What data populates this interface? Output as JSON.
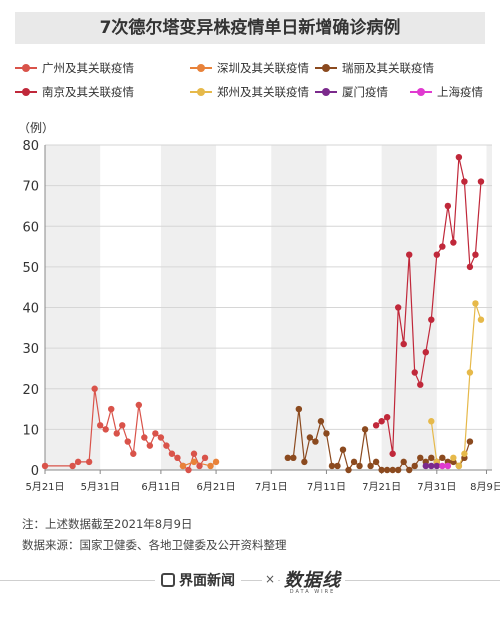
{
  "title": "7次德尔塔变异株疫情单日新增确诊病例",
  "legend": [
    {
      "label": "广州及其关联疫情",
      "color": "#d9534a"
    },
    {
      "label": "深圳及其关联疫情",
      "color": "#e8823a"
    },
    {
      "label": "瑞丽及其关联疫情",
      "color": "#8b4a1f"
    },
    {
      "label": "南京及其关联疫情",
      "color": "#c0283a"
    },
    {
      "label": "郑州及其关联疫情",
      "color": "#e6b94a"
    },
    {
      "label": "厦门疫情",
      "color": "#7b2a8c"
    },
    {
      "label": "上海疫情",
      "color": "#e03ad0"
    }
  ],
  "notes": {
    "line1": "注：上述数据截至2021年8月9日",
    "line2": "数据来源：国家卫健委、各地卫健委及公开资料整理"
  },
  "footer": {
    "brand": "界面新闻",
    "times": "×",
    "partner": "数据线",
    "partner_sub": "DATA WIRE"
  },
  "chart_data": {
    "type": "line",
    "title": "7次德尔塔变异株疫情单日新增确诊病例",
    "ylabel": "（例）",
    "ylim": [
      0,
      80
    ],
    "yticks": [
      0,
      10,
      20,
      30,
      40,
      50,
      60,
      70,
      80
    ],
    "x_range": [
      "2021-05-21",
      "2021-08-10"
    ],
    "x_ticks": [
      {
        "date": "2021-05-21",
        "label": "5月21日"
      },
      {
        "date": "2021-05-31",
        "label": "5月31日"
      },
      {
        "date": "2021-06-11",
        "label": "6月11日"
      },
      {
        "date": "2021-06-21",
        "label": "6月21日"
      },
      {
        "date": "2021-07-01",
        "label": "7月1日"
      },
      {
        "date": "2021-07-11",
        "label": "7月11日"
      },
      {
        "date": "2021-07-21",
        "label": "7月21日"
      },
      {
        "date": "2021-07-31",
        "label": "7月31日"
      },
      {
        "date": "2021-08-09",
        "label": "8月9日"
      }
    ],
    "grid": true,
    "series": [
      {
        "name": "广州及其关联疫情",
        "color": "#d9534a",
        "points": [
          [
            "2021-05-21",
            1
          ],
          [
            "2021-05-26",
            1
          ],
          [
            "2021-05-27",
            2
          ],
          [
            "2021-05-29",
            2
          ],
          [
            "2021-05-30",
            20
          ],
          [
            "2021-05-31",
            11
          ],
          [
            "2021-06-01",
            10
          ],
          [
            "2021-06-02",
            15
          ],
          [
            "2021-06-03",
            9
          ],
          [
            "2021-06-04",
            11
          ],
          [
            "2021-06-05",
            7
          ],
          [
            "2021-06-06",
            4
          ],
          [
            "2021-06-07",
            16
          ],
          [
            "2021-06-08",
            8
          ],
          [
            "2021-06-09",
            6
          ],
          [
            "2021-06-10",
            9
          ],
          [
            "2021-06-11",
            8
          ],
          [
            "2021-06-12",
            6
          ],
          [
            "2021-06-13",
            4
          ],
          [
            "2021-06-14",
            3
          ],
          [
            "2021-06-15",
            1
          ],
          [
            "2021-06-16",
            0
          ],
          [
            "2021-06-17",
            4
          ],
          [
            "2021-06-18",
            1
          ],
          [
            "2021-06-19",
            3
          ]
        ]
      },
      {
        "name": "深圳及其关联疫情",
        "color": "#e8823a",
        "points": [
          [
            "2021-06-15",
            1
          ],
          [
            "2021-06-17",
            2
          ],
          [
            "2021-06-20",
            1
          ],
          [
            "2021-06-21",
            2
          ]
        ]
      },
      {
        "name": "瑞丽及其关联疫情",
        "color": "#8b4a1f",
        "points": [
          [
            "2021-07-04",
            3
          ],
          [
            "2021-07-05",
            3
          ],
          [
            "2021-07-06",
            15
          ],
          [
            "2021-07-07",
            2
          ],
          [
            "2021-07-08",
            8
          ],
          [
            "2021-07-09",
            7
          ],
          [
            "2021-07-10",
            12
          ],
          [
            "2021-07-11",
            9
          ],
          [
            "2021-07-12",
            1
          ],
          [
            "2021-07-13",
            1
          ],
          [
            "2021-07-14",
            5
          ],
          [
            "2021-07-15",
            0
          ],
          [
            "2021-07-16",
            2
          ],
          [
            "2021-07-17",
            1
          ],
          [
            "2021-07-18",
            10
          ],
          [
            "2021-07-19",
            1
          ],
          [
            "2021-07-20",
            2
          ],
          [
            "2021-07-21",
            0
          ],
          [
            "2021-07-22",
            0
          ],
          [
            "2021-07-23",
            0
          ],
          [
            "2021-07-24",
            0
          ],
          [
            "2021-07-25",
            2
          ],
          [
            "2021-07-26",
            0
          ],
          [
            "2021-07-27",
            1
          ],
          [
            "2021-07-28",
            3
          ],
          [
            "2021-07-29",
            2
          ],
          [
            "2021-07-30",
            3
          ],
          [
            "2021-07-31",
            2
          ],
          [
            "2021-08-01",
            3
          ],
          [
            "2021-08-02",
            2
          ],
          [
            "2021-08-03",
            2
          ],
          [
            "2021-08-04",
            1
          ],
          [
            "2021-08-05",
            3
          ],
          [
            "2021-08-06",
            7
          ]
        ]
      },
      {
        "name": "南京及其关联疫情",
        "color": "#c0283a",
        "points": [
          [
            "2021-07-20",
            11
          ],
          [
            "2021-07-21",
            12
          ],
          [
            "2021-07-22",
            13
          ],
          [
            "2021-07-23",
            4
          ],
          [
            "2021-07-24",
            40
          ],
          [
            "2021-07-25",
            31
          ],
          [
            "2021-07-26",
            53
          ],
          [
            "2021-07-27",
            24
          ],
          [
            "2021-07-28",
            21
          ],
          [
            "2021-07-29",
            29
          ],
          [
            "2021-07-30",
            37
          ],
          [
            "2021-07-31",
            53
          ],
          [
            "2021-08-01",
            55
          ],
          [
            "2021-08-02",
            65
          ],
          [
            "2021-08-03",
            56
          ],
          [
            "2021-08-04",
            77
          ],
          [
            "2021-08-05",
            71
          ],
          [
            "2021-08-06",
            50
          ],
          [
            "2021-08-07",
            53
          ],
          [
            "2021-08-08",
            71
          ]
        ]
      },
      {
        "name": "郑州及其关联疫情",
        "color": "#e6b94a",
        "points": [
          [
            "2021-07-30",
            12
          ],
          [
            "2021-07-31",
            2
          ],
          [
            "2021-08-01",
            1
          ],
          [
            "2021-08-02",
            1
          ],
          [
            "2021-08-03",
            3
          ],
          [
            "2021-08-04",
            1
          ],
          [
            "2021-08-05",
            4
          ],
          [
            "2021-08-06",
            24
          ],
          [
            "2021-08-07",
            41
          ],
          [
            "2021-08-08",
            37
          ]
        ]
      },
      {
        "name": "厦门疫情",
        "color": "#7b2a8c",
        "points": [
          [
            "2021-07-29",
            1
          ],
          [
            "2021-07-30",
            1
          ],
          [
            "2021-07-31",
            1
          ]
        ]
      },
      {
        "name": "上海疫情",
        "color": "#e03ad0",
        "points": [
          [
            "2021-08-01",
            1
          ],
          [
            "2021-08-02",
            1
          ]
        ]
      }
    ]
  }
}
